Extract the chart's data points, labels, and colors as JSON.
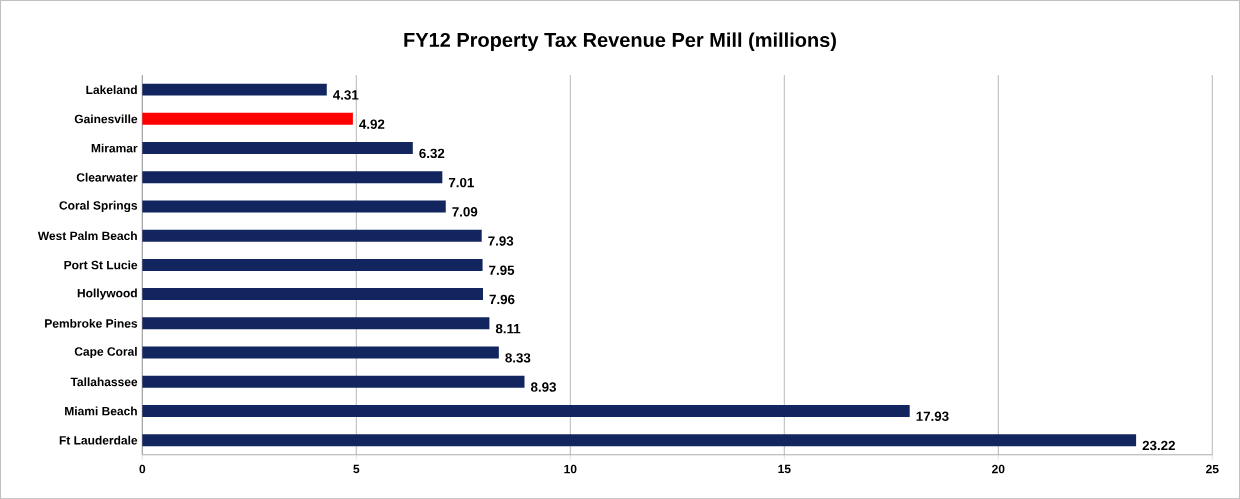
{
  "chart_data": {
    "type": "bar",
    "orientation": "horizontal",
    "title": "FY12 Property Tax Revenue Per Mill (millions)",
    "categories": [
      "Lakeland",
      "Gainesville",
      "Miramar",
      "Clearwater",
      "Coral Springs",
      "West Palm Beach",
      "Port St Lucie",
      "Hollywood",
      "Pembroke Pines",
      "Cape Coral",
      "Tallahassee",
      "Miami Beach",
      "Ft Lauderdale"
    ],
    "values": [
      4.31,
      4.92,
      6.32,
      7.01,
      7.09,
      7.93,
      7.95,
      7.96,
      8.11,
      8.33,
      8.93,
      17.93,
      23.22
    ],
    "colors": [
      "#13255f",
      "#ff0000",
      "#13255f",
      "#13255f",
      "#13255f",
      "#13255f",
      "#13255f",
      "#13255f",
      "#13255f",
      "#13255f",
      "#13255f",
      "#13255f",
      "#13255f"
    ],
    "xlim": [
      0,
      25
    ],
    "xticks": [
      0,
      5,
      10,
      15,
      20,
      25
    ],
    "grid": "x",
    "data_labels": true
  }
}
